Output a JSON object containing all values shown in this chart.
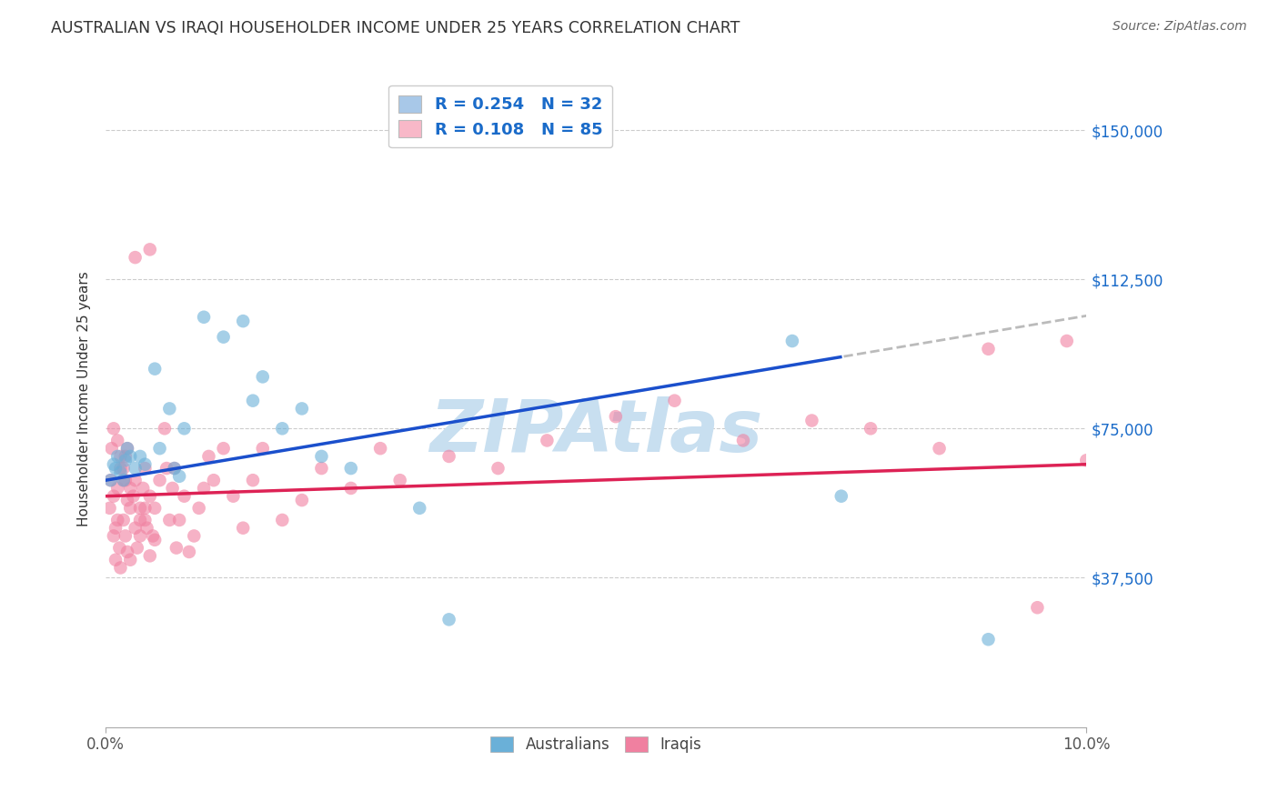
{
  "title": "AUSTRALIAN VS IRAQI HOUSEHOLDER INCOME UNDER 25 YEARS CORRELATION CHART",
  "source": "Source: ZipAtlas.com",
  "ylabel": "Householder Income Under 25 years",
  "xlim": [
    0.0,
    10.0
  ],
  "ylim": [
    0,
    165000
  ],
  "yticks": [
    37500,
    75000,
    112500,
    150000
  ],
  "ytick_labels": [
    "$37,500",
    "$75,000",
    "$112,500",
    "$150,000"
  ],
  "legend_entries": [
    {
      "label": "R = 0.254   N = 32",
      "color": "#a8c8e8"
    },
    {
      "label": "R = 0.108   N = 85",
      "color": "#f8b8c8"
    }
  ],
  "australian_color": "#6ab0d8",
  "iraqi_color": "#f080a0",
  "trend_australian_color": "#1a4fcc",
  "trend_iraqi_color": "#dd2255",
  "trend_ext_color": "#bbbbbb",
  "watermark": "ZIPAtlas",
  "watermark_color": "#c8dff0",
  "background_color": "#ffffff",
  "grid_color": "#cccccc",
  "dot_size": 110,
  "dot_alpha": 0.6,
  "australians_x": [
    0.05,
    0.08,
    0.1,
    0.12,
    0.15,
    0.18,
    0.2,
    0.22,
    0.25,
    0.3,
    0.35,
    0.4,
    0.5,
    0.55,
    0.65,
    0.7,
    0.75,
    0.8,
    1.0,
    1.2,
    1.4,
    1.5,
    1.6,
    1.8,
    2.0,
    2.2,
    2.5,
    3.2,
    3.5,
    7.0,
    7.5,
    9.0
  ],
  "australians_y": [
    62000,
    66000,
    65000,
    68000,
    64000,
    62000,
    67000,
    70000,
    68000,
    65000,
    68000,
    66000,
    90000,
    70000,
    80000,
    65000,
    63000,
    75000,
    103000,
    98000,
    102000,
    82000,
    88000,
    75000,
    80000,
    68000,
    65000,
    55000,
    27000,
    97000,
    58000,
    22000
  ],
  "iraqis_x": [
    0.04,
    0.05,
    0.06,
    0.08,
    0.08,
    0.1,
    0.1,
    0.12,
    0.12,
    0.14,
    0.15,
    0.15,
    0.18,
    0.18,
    0.2,
    0.2,
    0.22,
    0.22,
    0.25,
    0.25,
    0.28,
    0.3,
    0.3,
    0.32,
    0.35,
    0.35,
    0.38,
    0.4,
    0.4,
    0.42,
    0.45,
    0.45,
    0.48,
    0.5,
    0.5,
    0.55,
    0.6,
    0.62,
    0.65,
    0.68,
    0.7,
    0.72,
    0.75,
    0.8,
    0.85,
    0.9,
    0.95,
    1.0,
    1.05,
    1.1,
    1.2,
    1.3,
    1.4,
    1.5,
    1.6,
    1.8,
    2.0,
    2.2,
    2.5,
    2.8,
    3.0,
    3.5,
    4.0,
    4.5,
    5.2,
    5.8,
    6.5,
    7.2,
    7.8,
    8.5,
    9.0,
    9.5,
    9.8,
    10.0,
    0.45,
    0.3,
    0.22,
    0.18,
    0.12,
    0.08,
    0.15,
    0.2,
    0.25,
    0.35,
    0.4
  ],
  "iraqis_y": [
    55000,
    62000,
    70000,
    58000,
    48000,
    50000,
    42000,
    60000,
    52000,
    45000,
    65000,
    40000,
    62000,
    52000,
    68000,
    48000,
    57000,
    44000,
    42000,
    55000,
    58000,
    50000,
    62000,
    45000,
    52000,
    48000,
    60000,
    55000,
    65000,
    50000,
    58000,
    43000,
    48000,
    55000,
    47000,
    62000,
    75000,
    65000,
    52000,
    60000,
    65000,
    45000,
    52000,
    58000,
    44000,
    48000,
    55000,
    60000,
    68000,
    62000,
    70000,
    58000,
    50000,
    62000,
    70000,
    52000,
    57000,
    65000,
    60000,
    70000,
    62000,
    68000,
    65000,
    72000,
    78000,
    82000,
    72000,
    77000,
    75000,
    70000,
    95000,
    30000,
    97000,
    67000,
    120000,
    118000,
    70000,
    65000,
    72000,
    75000,
    68000,
    62000,
    60000,
    55000,
    52000
  ]
}
